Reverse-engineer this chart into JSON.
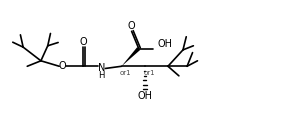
{
  "bg_color": "#ffffff",
  "line_color": "#000000",
  "lw": 1.2,
  "fs": 7.0,
  "sfs": 5.0,
  "figsize": [
    2.84,
    1.38
  ],
  "dpi": 100,
  "xlim": [
    0,
    10
  ],
  "ylim": [
    0,
    5
  ]
}
